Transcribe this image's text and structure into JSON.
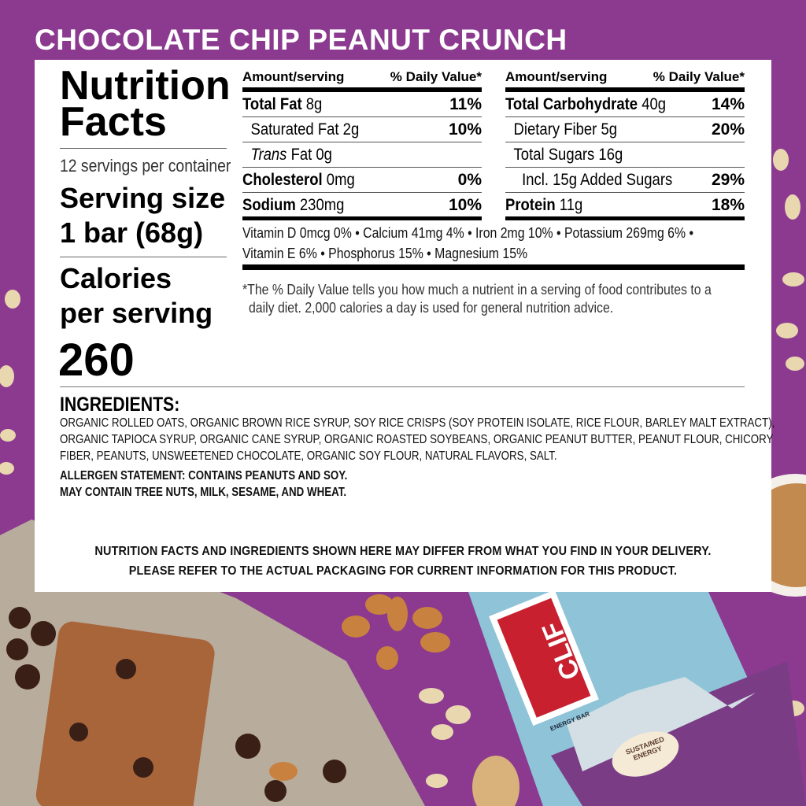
{
  "product_title": "CHOCOLATE CHIP PEANUT CRUNCH",
  "label": {
    "heading_line1": "Nutrition",
    "heading_line2": "Facts",
    "servings": "12 servings per container",
    "serving_size_label": "Serving size",
    "serving_size_value": "1 bar (68g)",
    "calories_label_line1": "Calories",
    "calories_label_line2": "per serving",
    "calories": "260",
    "header_amount": "Amount/serving",
    "header_dv": "% Daily Value*",
    "left_rows": [
      {
        "name": "Total Fat",
        "amount": "8g",
        "dv": "11%",
        "bold": true
      },
      {
        "name": "Saturated Fat",
        "amount": "2g",
        "dv": "10%",
        "bold": false
      },
      {
        "name": "Trans",
        "amount": "Fat 0g",
        "dv": "",
        "bold": false
      },
      {
        "name": "Cholesterol",
        "amount": "0mg",
        "dv": "0%",
        "bold": true
      },
      {
        "name": "Sodium",
        "amount": "230mg",
        "dv": "10%",
        "bold": true
      }
    ],
    "right_rows": [
      {
        "name": "Total Carbohydrate",
        "amount": "40g",
        "dv": "14%",
        "bold": true
      },
      {
        "name": "Dietary Fiber",
        "amount": "5g",
        "dv": "20%",
        "bold": false
      },
      {
        "name": "Total Sugars",
        "amount": "16g",
        "dv": "",
        "bold": false
      },
      {
        "name": "Incl. 15g Added Sugars",
        "amount": "",
        "dv": "29%",
        "bold": false
      },
      {
        "name": "Protein",
        "amount": "11g",
        "dv": "18%",
        "bold": true
      }
    ],
    "vitamins_line1": "Vitamin D  0mcg  0%  •  Calcium  41mg  4%  •  Iron  2mg  10%  •  Potassium  269mg  6%  •",
    "vitamins_line2": "Vitamin E 6% • Phosphorus 15% • Magnesium 15%",
    "footnote_line1": "*The % Daily Value tells you how much a nutrient in a serving of food contributes to a",
    "footnote_line2": "daily diet. 2,000 calories a day is used for general nutrition advice."
  },
  "ingredients": {
    "heading": "INGREDIENTS:",
    "line1": "ORGANIC ROLLED OATS, ORGANIC BROWN RICE SYRUP, SOY RICE CRISPS (SOY PROTEIN ISOLATE, RICE FLOUR, BARLEY MALT EXTRACT),",
    "line2": "ORGANIC TAPIOCA SYRUP, ORGANIC CANE SYRUP, ORGANIC ROASTED SOYBEANS, ORGANIC PEANUT BUTTER, PEANUT FLOUR, CHICORY",
    "line3": "FIBER, PEANUTS, UNSWEETENED CHOCOLATE, ORGANIC SOY FLOUR, NATURAL FLAVORS, SALT.",
    "allergen1": "ALLERGEN STATEMENT: CONTAINS PEANUTS AND SOY.",
    "allergen2": "MAY CONTAIN TREE NUTS, MILK, SESAME, AND WHEAT."
  },
  "disclaimer_line1": "NUTRITION FACTS AND INGREDIENTS SHOWN HERE MAY DIFFER FROM WHAT YOU FIND IN YOUR DELIVERY.",
  "disclaimer_line2": "PLEASE REFER TO THE ACTUAL PACKAGING FOR CURRENT INFORMATION FOR THIS PRODUCT.",
  "package": {
    "brand": "CLIF",
    "sub": "BAR",
    "tag": "ENERGY BAR",
    "badge": "SUSTAINED ENERGY",
    "flavor": "CHOCOLATE CHIP PEANUT CRUNCH"
  },
  "colors": {
    "background": "#8b3a8f",
    "package_blue": "#8fc3d8",
    "logo_red": "#c8202f"
  }
}
